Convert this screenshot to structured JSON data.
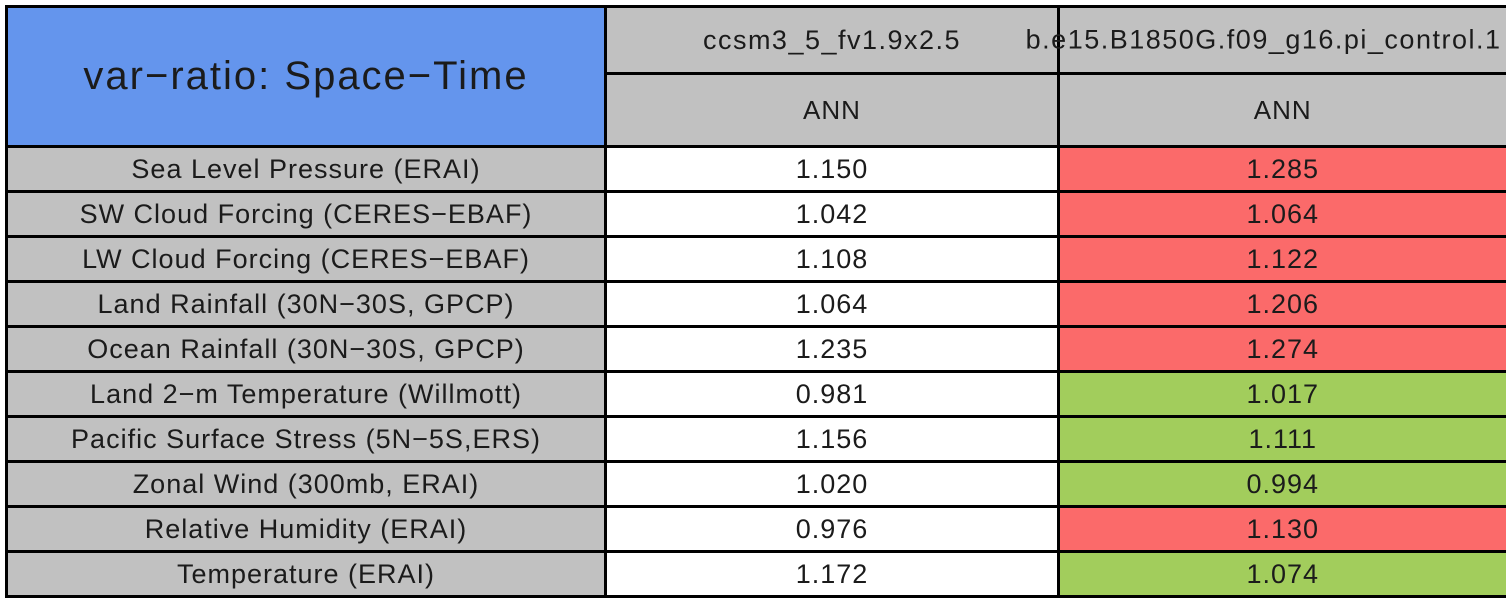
{
  "chart_data": {
    "type": "table",
    "title": "var−ratio: Space−Time",
    "columns": [
      {
        "model": "ccsm3_5_fv1.9x2.5",
        "season": "ANN"
      },
      {
        "model": "b.e15.B1850G.f09_g16.pi_control.1",
        "season": "ANN"
      }
    ],
    "rows": [
      {
        "label": "Sea Level Pressure (ERAI)",
        "values": [
          "1.150",
          "1.285"
        ],
        "highlight": "red"
      },
      {
        "label": "SW Cloud Forcing (CERES−EBAF)",
        "values": [
          "1.042",
          "1.064"
        ],
        "highlight": "red"
      },
      {
        "label": "LW Cloud Forcing (CERES−EBAF)",
        "values": [
          "1.108",
          "1.122"
        ],
        "highlight": "red"
      },
      {
        "label": "Land Rainfall (30N−30S, GPCP)",
        "values": [
          "1.064",
          "1.206"
        ],
        "highlight": "red"
      },
      {
        "label": "Ocean Rainfall (30N−30S, GPCP)",
        "values": [
          "1.235",
          "1.274"
        ],
        "highlight": "red"
      },
      {
        "label": "Land 2−m Temperature (Willmott)",
        "values": [
          "0.981",
          "1.017"
        ],
        "highlight": "green"
      },
      {
        "label": "Pacific Surface Stress (5N−5S,ERS)",
        "values": [
          "1.156",
          "1.111"
        ],
        "highlight": "green"
      },
      {
        "label": "Zonal Wind (300mb, ERAI)",
        "values": [
          "1.020",
          "0.994"
        ],
        "highlight": "green"
      },
      {
        "label": "Relative Humidity (ERAI)",
        "values": [
          "0.976",
          "1.130"
        ],
        "highlight": "red"
      },
      {
        "label": "Temperature (ERAI)",
        "values": [
          "1.172",
          "1.074"
        ],
        "highlight": "green"
      }
    ],
    "layout_hints": {
      "title_cell_spans_both_header_rows": true,
      "second_value_column_clipped_at_right_edge": true
    }
  },
  "colors": {
    "title_bg": "#6495ED",
    "header_bg": "#C1C1C1",
    "label_bg": "#C1C1C1",
    "value_bg": "#FFFFFF",
    "red_cell": "#FB6A6A",
    "green_cell": "#A2CD5C",
    "border": "#000000",
    "text": "#1B1B1B"
  }
}
